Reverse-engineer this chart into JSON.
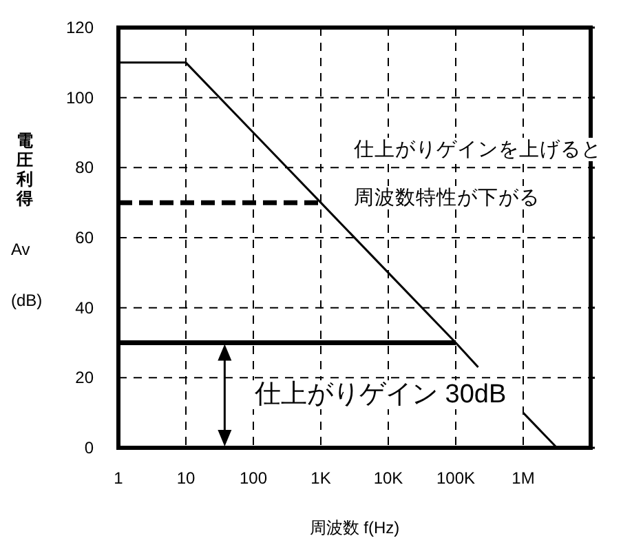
{
  "chart_data": {
    "type": "line",
    "xlabel": "周波数 f(Hz)",
    "ylabel": "電圧利得 Av (dB)",
    "log": "x",
    "xlim": [
      1,
      10000000
    ],
    "xticks": [
      1,
      10,
      100,
      {
        "value": 1000,
        "label": "1K"
      },
      {
        "value": 10000,
        "label": "10K"
      },
      {
        "value": 100000,
        "label": "100K"
      },
      {
        "value": 1000000,
        "label": "1M"
      }
    ],
    "ylim": [
      0,
      120
    ],
    "yticks": [
      0,
      20,
      40,
      60,
      80,
      100,
      120
    ],
    "grid": true,
    "marker": "none",
    "series": [
      {
        "color": "#000000",
        "line_style": "solid",
        "x": [
          1,
          10,
          100,
          1000,
          10000,
          100000,
          215000,
          500000,
          1000000,
          3160000
        ],
        "values": [
          110,
          110,
          90,
          70,
          50,
          30,
          23,
          null,
          10,
          0
        ]
      },
      {
        "color": "#000000",
        "line_style": "solid",
        "x": [
          1,
          100000
        ],
        "values": [
          30,
          30
        ]
      },
      {
        "color": "#000000",
        "line_style": "dashed",
        "x": [
          1,
          1000
        ],
        "values": [
          70,
          70
        ]
      }
    ],
    "annotations": [
      "仕上がりゲインを上げると",
      "周波数特性が下がる",
      "仕上がりゲイン 30dB"
    ]
  }
}
